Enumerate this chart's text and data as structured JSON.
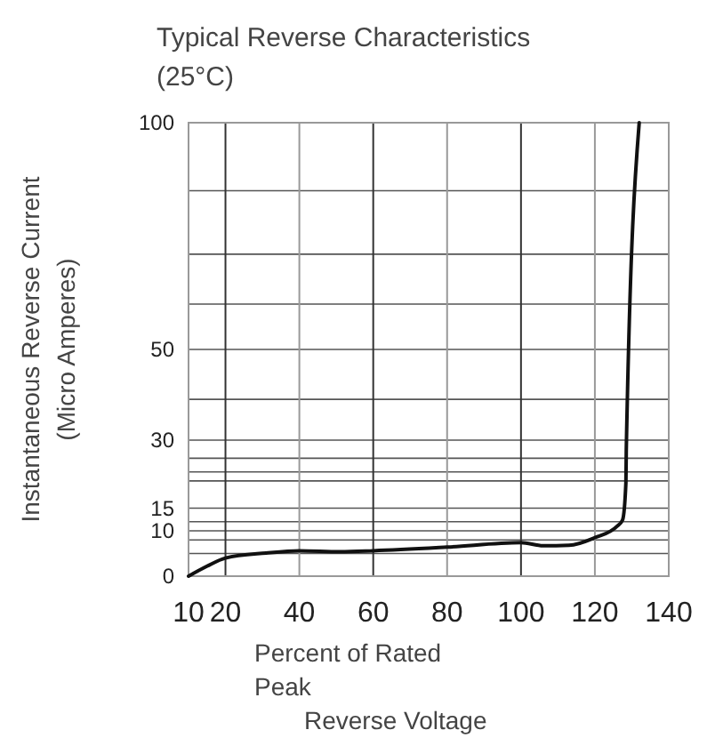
{
  "chart_data": {
    "type": "line",
    "title": "Typical Reverse Characteristics\n(25°C)",
    "xlabel": "Percent of Rated\nPeak\nReverse Voltage",
    "ylabel": "Instantaneous Reverse Current\n(Micro Amperes)",
    "xlim": [
      10,
      140
    ],
    "xticks": [
      10,
      20,
      40,
      60,
      80,
      100,
      120,
      140
    ],
    "ylim": [
      0,
      100
    ],
    "yticks": [
      0,
      {
        "value": 5,
        "label": null
      },
      {
        "value": 8,
        "label": null
      },
      10,
      {
        "value": 12,
        "label": null
      },
      15,
      {
        "value": 21,
        "label": null
      },
      {
        "value": 23,
        "label": null
      },
      {
        "value": 26,
        "label": null
      },
      30,
      {
        "value": 39,
        "label": null
      },
      50,
      {
        "value": 60,
        "label": null
      },
      {
        "value": 71,
        "label": null
      },
      {
        "value": 85,
        "label": null
      },
      100
    ],
    "grid": true,
    "marker": "none",
    "line_style": "solid",
    "series": [
      {
        "color": "#111111",
        "x": [
          10,
          15,
          20,
          31,
          40,
          51,
          60,
          80,
          100,
          106,
          113,
          120,
          126,
          127.5,
          128.4,
          128.5,
          132
        ],
        "values": [
          0,
          2.2,
          4,
          5.1,
          5.6,
          5.4,
          5.6,
          6.4,
          7.4,
          6.7,
          6.8,
          8.5,
          11,
          12.4,
          20.6,
          27.8,
          100
        ]
      }
    ]
  }
}
